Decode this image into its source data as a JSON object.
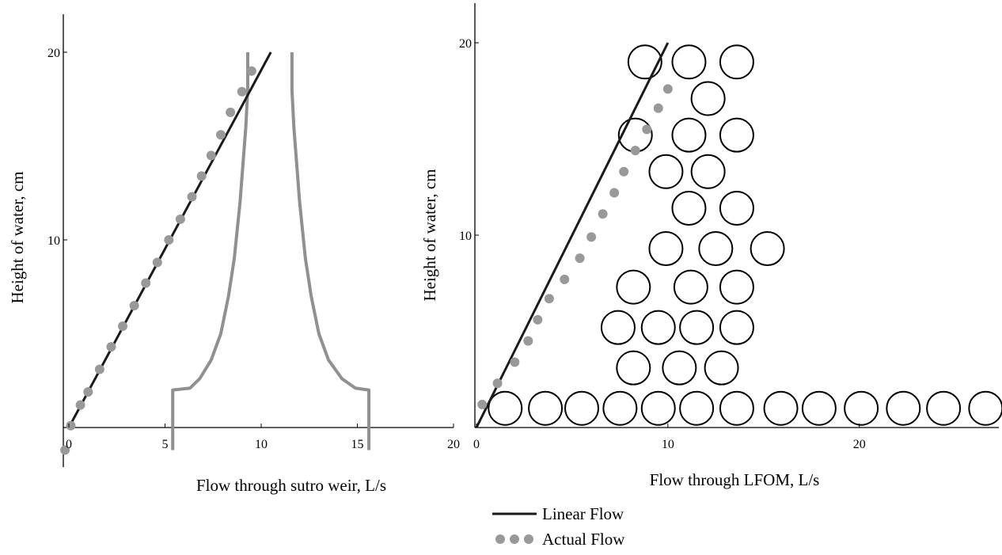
{
  "chart_data": [
    {
      "type": "line",
      "xlabel": "Flow through sutro weir, L/s",
      "ylabel": "Height of water, cm",
      "xlim": [
        0,
        20
      ],
      "ylim": [
        0,
        20
      ],
      "x_ticks": [
        "0",
        "5",
        "10",
        "15",
        "20"
      ],
      "y_ticks": [
        "10",
        "20"
      ],
      "series": [
        {
          "name": "Linear Flow",
          "style": "line",
          "color": "#1a1a1a",
          "x": [
            0,
            10.5
          ],
          "y": [
            0,
            20
          ]
        },
        {
          "name": "Actual Flow",
          "style": "dots",
          "color": "#999999",
          "x": [
            -0.2,
            0.1,
            0.6,
            1.0,
            1.6,
            2.2,
            2.8,
            3.4,
            4.0,
            4.6,
            5.2,
            5.8,
            6.4,
            6.9,
            7.4,
            7.9,
            8.4,
            9.0,
            9.5
          ],
          "y": [
            -1.2,
            0.1,
            1.2,
            1.9,
            3.1,
            4.3,
            5.4,
            6.5,
            7.7,
            8.8,
            10.0,
            11.1,
            12.3,
            13.4,
            14.5,
            15.6,
            16.8,
            17.9,
            19.0
          ]
        },
        {
          "name": "Sutro weir profile left",
          "style": "outline",
          "color": "#909090",
          "x": [
            5.4,
            5.4,
            6.3,
            6.8,
            7.4,
            7.9,
            8.3,
            8.6,
            8.9,
            9.2,
            9.3,
            9.3
          ],
          "y": [
            -1.2,
            2.0,
            2.1,
            2.6,
            3.6,
            5.0,
            7.0,
            9.0,
            12.0,
            16.0,
            18.0,
            20.0
          ]
        },
        {
          "name": "Sutro weir profile right",
          "style": "outline",
          "color": "#909090",
          "x": [
            15.6,
            15.6,
            14.9,
            14.2,
            13.5,
            13.0,
            12.6,
            12.3,
            12.0,
            11.7,
            11.6,
            11.6
          ],
          "y": [
            -1.2,
            2.0,
            2.1,
            2.6,
            3.6,
            5.0,
            7.0,
            9.0,
            12.0,
            16.0,
            18.0,
            20.0
          ]
        }
      ]
    },
    {
      "type": "line",
      "xlabel": "Flow through LFOM, L/s",
      "ylabel": "Height of water, cm",
      "xlim": [
        0,
        27
      ],
      "ylim": [
        0,
        20
      ],
      "x_ticks": [
        "0",
        "10",
        "20"
      ],
      "y_ticks": [
        "10",
        "20"
      ],
      "series": [
        {
          "name": "Linear Flow",
          "style": "line",
          "color": "#1a1a1a",
          "x": [
            0,
            10
          ],
          "y": [
            0,
            20
          ]
        },
        {
          "name": "Actual Flow",
          "style": "dots",
          "color": "#999999",
          "x": [
            0.3,
            1.1,
            2.0,
            2.7,
            3.2,
            3.8,
            4.6,
            5.4,
            6.0,
            6.6,
            7.2,
            7.7,
            8.3,
            8.9,
            9.5,
            10.0
          ],
          "y": [
            1.2,
            2.3,
            3.4,
            4.5,
            5.6,
            6.7,
            7.7,
            8.8,
            9.9,
            11.1,
            12.2,
            13.3,
            14.4,
            15.5,
            16.6,
            17.6
          ]
        },
        {
          "name": "LFOM orifice pattern",
          "style": "circles",
          "color": "#000000",
          "rows": [
            {
              "y": 1.0,
              "x": [
                1.5,
                3.6,
                5.5,
                7.5,
                9.5,
                11.5,
                13.6,
                15.9,
                17.9,
                20.1,
                22.3,
                24.4,
                26.6
              ]
            },
            {
              "y": 3.1,
              "x": [
                8.2,
                10.6,
                12.8
              ]
            },
            {
              "y": 5.2,
              "x": [
                7.4,
                9.5,
                11.5,
                13.6
              ]
            },
            {
              "y": 7.3,
              "x": [
                8.2,
                11.2,
                13.6
              ]
            },
            {
              "y": 9.3,
              "x": [
                9.9,
                12.5,
                15.2
              ]
            },
            {
              "y": 11.4,
              "x": [
                11.1,
                13.6
              ]
            },
            {
              "y": 13.3,
              "x": [
                9.9,
                12.1
              ]
            },
            {
              "y": 15.2,
              "x": [
                8.3,
                11.1,
                13.6
              ]
            },
            {
              "y": 17.1,
              "x": [
                12.1
              ]
            },
            {
              "y": 19.0,
              "x": [
                8.8,
                11.1,
                13.6
              ]
            }
          ]
        }
      ]
    }
  ],
  "legend": {
    "items": [
      {
        "label": "Linear Flow",
        "marker": "line"
      },
      {
        "label": "Actual Flow",
        "marker": "dots"
      }
    ]
  }
}
